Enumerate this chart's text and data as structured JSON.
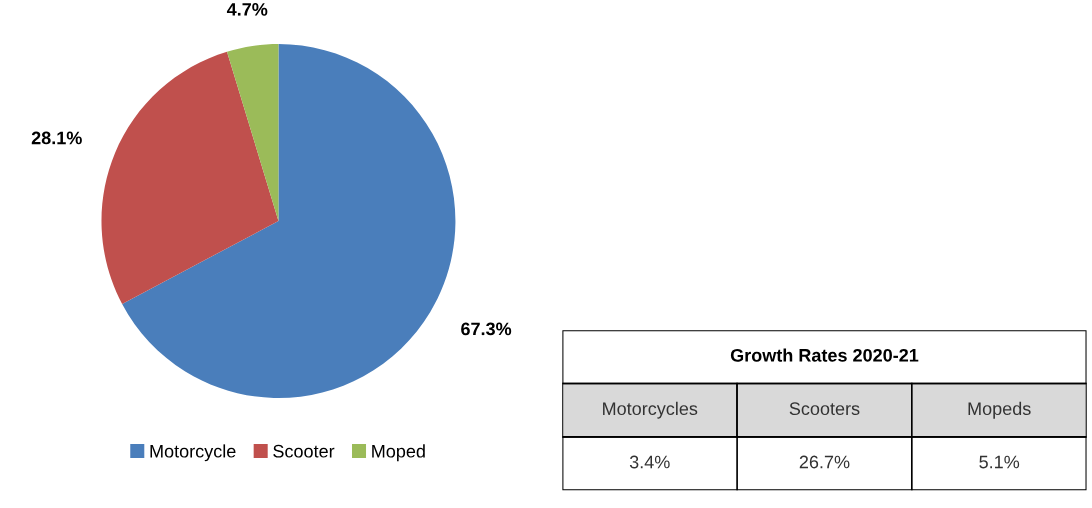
{
  "chart_data": [
    {
      "type": "pie",
      "categories": [
        "Motorcycle",
        "Scooter",
        "Moped"
      ],
      "values": [
        67.3,
        28.1,
        4.7
      ],
      "colors": [
        "#4a7ebb",
        "#c0504d",
        "#9bbb59"
      ],
      "value_labels": [
        "67.3%",
        "28.1%",
        "4.7%"
      ],
      "legend": "bottom"
    },
    {
      "type": "other",
      "title": "Growth Rates 2020-21",
      "categories": [
        "Motorcycles",
        "Scooters",
        "Mopeds"
      ],
      "value_labels": [
        "3.4%",
        "26.7%",
        "5.1%"
      ]
    }
  ]
}
